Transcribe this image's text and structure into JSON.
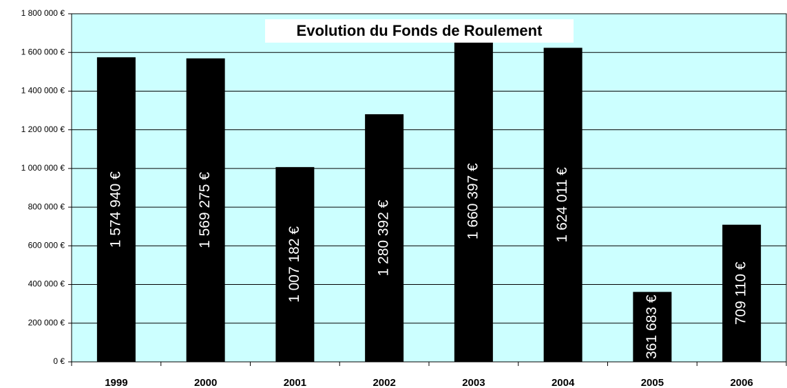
{
  "chart_data": {
    "type": "bar",
    "title": "Evolution du Fonds de Roulement",
    "categories": [
      "1999",
      "2000",
      "2001",
      "2002",
      "2003",
      "2004",
      "2005",
      "2006"
    ],
    "values": [
      1574940,
      1569275,
      1007182,
      1280392,
      1660397,
      1624011,
      361683,
      709110
    ],
    "value_labels": [
      "1 574 940 €",
      "1 569 275 €",
      "1 007 182 €",
      "1 280 392 €",
      "1 660 397 €",
      "1 624 011 €",
      "361 683 €",
      "709 110 €"
    ],
    "color": "#000000",
    "ylim": [
      0,
      1800000
    ],
    "yticks": [
      {
        "value": 0,
        "label": "0 €"
      },
      {
        "value": 200000,
        "label": "200 000 €"
      },
      {
        "value": 400000,
        "label": "400 000 €"
      },
      {
        "value": 600000,
        "label": "600 000 €"
      },
      {
        "value": 800000,
        "label": "800 000 €"
      },
      {
        "value": 1000000,
        "label": "1 000 000 €"
      },
      {
        "value": 1200000,
        "label": "1 200 000 €"
      },
      {
        "value": 1400000,
        "label": "1 400 000 €"
      },
      {
        "value": 1600000,
        "label": "1 600 000 €"
      },
      {
        "value": 1800000,
        "label": "1 800 000 €"
      }
    ],
    "grid": true
  }
}
